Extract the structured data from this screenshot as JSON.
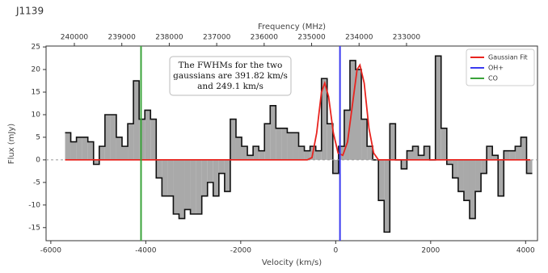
{
  "chart_data": {
    "type": "step",
    "title": "J1139",
    "x_label": "Velocity (km/s)",
    "y_label": "Flux (mJy)",
    "x2_label": "Frequency (MHz)",
    "annotation": [
      "The FWHMs for the two",
      "gaussians are 391.82 km/s",
      "and 249.1 km/s"
    ],
    "x": [
      -5640,
      -5520,
      -5400,
      -5280,
      -5160,
      -5040,
      -4920,
      -4800,
      -4680,
      -4560,
      -4440,
      -4320,
      -4200,
      -4080,
      -3960,
      -3840,
      -3720,
      -3600,
      -3480,
      -3360,
      -3240,
      -3120,
      -3000,
      -2880,
      -2760,
      -2640,
      -2520,
      -2400,
      -2280,
      -2160,
      -2040,
      -1920,
      -1800,
      -1680,
      -1560,
      -1440,
      -1320,
      -1200,
      -1080,
      -960,
      -840,
      -720,
      -600,
      -480,
      -360,
      -240,
      -120,
      0,
      120,
      240,
      360,
      480,
      600,
      720,
      840,
      960,
      1080,
      1200,
      1320,
      1440,
      1560,
      1680,
      1800,
      1920,
      2040,
      2160,
      2280,
      2400,
      2520,
      2640,
      2760,
      2880,
      3000,
      3120,
      3240,
      3360,
      3480,
      3600,
      3720,
      3840,
      3960,
      4080
    ],
    "values": [
      6,
      4,
      5,
      5,
      4,
      -1,
      3,
      10,
      10,
      5,
      3,
      8,
      17.5,
      9,
      11,
      9,
      -4,
      -8,
      -8,
      -12,
      -13,
      -11,
      -12,
      -12,
      -8,
      -5,
      -8,
      -3,
      -7,
      9,
      5,
      3,
      1,
      3,
      2,
      8,
      12,
      7,
      7,
      6,
      6,
      3,
      2,
      3,
      2,
      18,
      8,
      -3,
      3,
      11,
      22,
      20,
      9,
      3,
      0,
      -9,
      -16,
      8,
      0,
      -2,
      2,
      3,
      1,
      3,
      0,
      23,
      7,
      -1,
      -4,
      -7,
      -9,
      -13,
      -7,
      -3,
      3,
      1,
      -8,
      2,
      2,
      3,
      5,
      -3
    ],
    "fill_color": "#a9a9a9",
    "fit": {
      "name": "Gaussian Fit",
      "color": "#e8241f",
      "x": [
        -5700,
        -600,
        -500,
        -400,
        -300,
        -230,
        -150,
        -50,
        50,
        150,
        250,
        350,
        450,
        510,
        600,
        700,
        800,
        900,
        4100
      ],
      "values": [
        0,
        0,
        0.5,
        6,
        15,
        17,
        14,
        6,
        1.5,
        1,
        4,
        12,
        20,
        21,
        17,
        7,
        1.5,
        0,
        0
      ]
    },
    "vlines": [
      {
        "name": "OH+",
        "color": "#3b3bf0",
        "x": 90
      },
      {
        "name": "CO",
        "color": "#3aa33a",
        "x": -4100
      }
    ],
    "xlim": [
      -6100,
      4250
    ],
    "ylim": [
      -17.9,
      25.2
    ],
    "xticks": [
      -6000,
      -4000,
      -2000,
      0,
      2000,
      4000
    ],
    "yticks": [
      -15,
      -10,
      -5,
      0,
      5,
      10,
      15,
      20,
      25
    ],
    "x2lim": [
      240596,
      230240
    ],
    "x2ticks": [
      240000,
      239000,
      238000,
      237000,
      236000,
      235000,
      234000,
      233000
    ],
    "legend": "upper right"
  }
}
